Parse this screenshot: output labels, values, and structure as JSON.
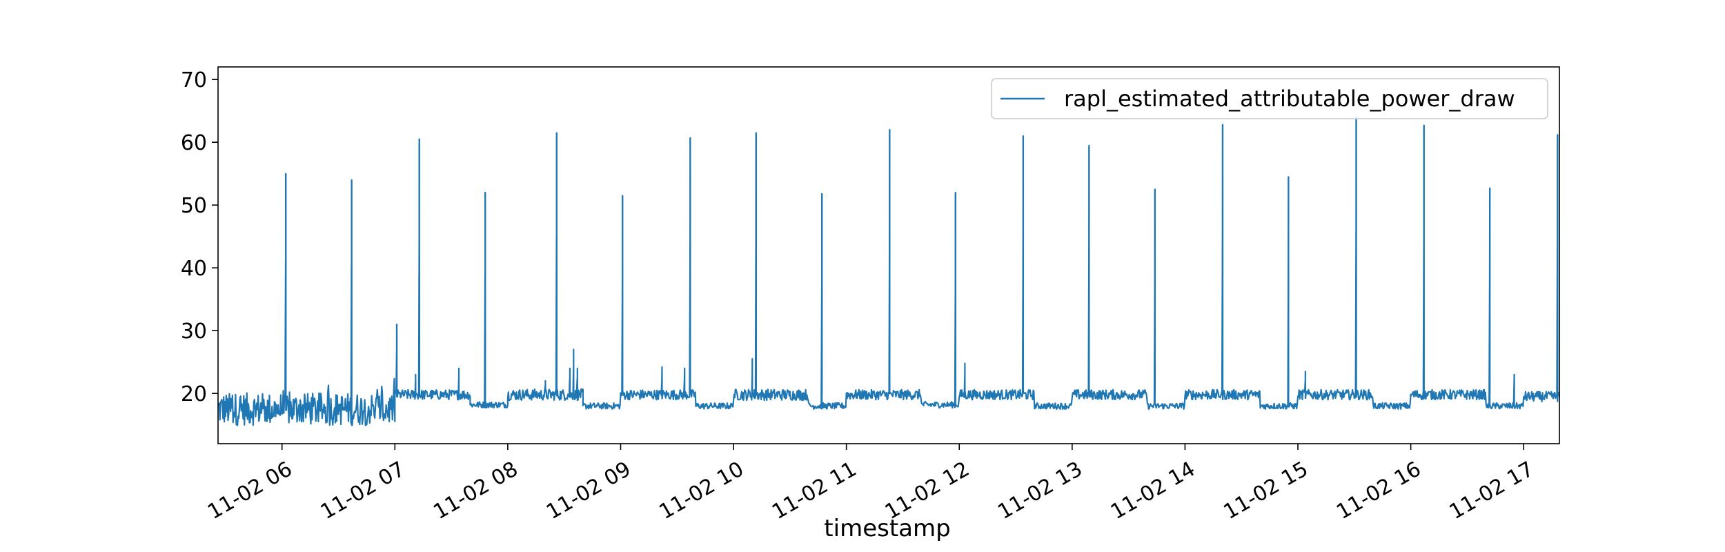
{
  "chart_data": {
    "type": "line",
    "title": "",
    "xlabel": "timestamp",
    "ylabel": "",
    "xlim": [
      "11-02 05:26",
      "11-02 17:19"
    ],
    "ylim": [
      12,
      72
    ],
    "y_ticks": [
      20,
      30,
      40,
      50,
      60,
      70
    ],
    "x_ticks": [
      "11-02 06",
      "11-02 07",
      "11-02 08",
      "11-02 09",
      "11-02 10",
      "11-02 11",
      "11-02 12",
      "11-02 13",
      "11-02 14",
      "11-02 15",
      "11-02 16",
      "11-02 17"
    ],
    "legend": {
      "position": "top-right",
      "entries": [
        "rapl_estimated_attributable_power_draw"
      ]
    },
    "grid": false,
    "color": "#1f77b4",
    "series": [
      {
        "name": "rapl_estimated_attributable_power_draw",
        "sample_interval_seconds": 20,
        "segments": [
          {
            "start": "11-02 05:26",
            "end": "11-02 07:00",
            "baseline": 17.5,
            "noise": 2.6
          },
          {
            "start": "11-02 07:00",
            "end": "11-02 07:40",
            "baseline": 19.8,
            "noise": 0.8
          },
          {
            "start": "11-02 07:40",
            "end": "11-02 08:00",
            "baseline": 18.2,
            "noise": 0.5
          },
          {
            "start": "11-02 08:00",
            "end": "11-02 08:40",
            "baseline": 19.8,
            "noise": 0.9
          },
          {
            "start": "11-02 08:40",
            "end": "11-02 09:00",
            "baseline": 18.0,
            "noise": 0.5
          },
          {
            "start": "11-02 09:00",
            "end": "11-02 09:40",
            "baseline": 19.8,
            "noise": 0.8
          },
          {
            "start": "11-02 09:40",
            "end": "11-02 10:00",
            "baseline": 18.0,
            "noise": 0.5
          },
          {
            "start": "11-02 10:00",
            "end": "11-02 10:40",
            "baseline": 19.8,
            "noise": 0.9
          },
          {
            "start": "11-02 10:40",
            "end": "11-02 11:00",
            "baseline": 18.0,
            "noise": 0.5
          },
          {
            "start": "11-02 11:00",
            "end": "11-02 11:40",
            "baseline": 19.8,
            "noise": 0.8
          },
          {
            "start": "11-02 11:40",
            "end": "11-02 12:00",
            "baseline": 18.2,
            "noise": 0.5
          },
          {
            "start": "11-02 12:00",
            "end": "11-02 12:40",
            "baseline": 19.8,
            "noise": 0.8
          },
          {
            "start": "11-02 12:40",
            "end": "11-02 13:00",
            "baseline": 18.0,
            "noise": 0.5
          },
          {
            "start": "11-02 13:00",
            "end": "11-02 13:40",
            "baseline": 19.8,
            "noise": 0.8
          },
          {
            "start": "11-02 13:40",
            "end": "11-02 14:00",
            "baseline": 18.0,
            "noise": 0.5
          },
          {
            "start": "11-02 14:00",
            "end": "11-02 14:40",
            "baseline": 19.8,
            "noise": 0.8
          },
          {
            "start": "11-02 14:40",
            "end": "11-02 15:00",
            "baseline": 18.0,
            "noise": 0.5
          },
          {
            "start": "11-02 15:00",
            "end": "11-02 15:40",
            "baseline": 19.8,
            "noise": 0.8
          },
          {
            "start": "11-02 15:40",
            "end": "11-02 16:00",
            "baseline": 18.0,
            "noise": 0.5
          },
          {
            "start": "11-02 16:00",
            "end": "11-02 16:40",
            "baseline": 19.8,
            "noise": 0.8
          },
          {
            "start": "11-02 16:40",
            "end": "11-02 17:00",
            "baseline": 18.0,
            "noise": 0.5
          },
          {
            "start": "11-02 17:00",
            "end": "11-02 17:19",
            "baseline": 19.5,
            "noise": 0.8
          }
        ],
        "peaks": [
          {
            "x": "11-02 06:02",
            "y": 55
          },
          {
            "x": "11-02 06:37",
            "y": 54
          },
          {
            "x": "11-02 07:01",
            "y": 31
          },
          {
            "x": "11-02 07:13",
            "y": 60.5
          },
          {
            "x": "11-02 07:48",
            "y": 52
          },
          {
            "x": "11-02 08:26",
            "y": 61.5
          },
          {
            "x": "11-02 09:01",
            "y": 51.5
          },
          {
            "x": "11-02 09:37",
            "y": 60.7
          },
          {
            "x": "11-02 10:12",
            "y": 61.5
          },
          {
            "x": "11-02 10:47",
            "y": 51.8
          },
          {
            "x": "11-02 11:23",
            "y": 62
          },
          {
            "x": "11-02 11:58",
            "y": 52
          },
          {
            "x": "11-02 12:34",
            "y": 61
          },
          {
            "x": "11-02 13:09",
            "y": 59.5
          },
          {
            "x": "11-02 13:44",
            "y": 52.5
          },
          {
            "x": "11-02 14:20",
            "y": 62.8
          },
          {
            "x": "11-02 14:55",
            "y": 54.5
          },
          {
            "x": "11-02 15:31",
            "y": 64
          },
          {
            "x": "11-02 16:07",
            "y": 62.7
          },
          {
            "x": "11-02 16:42",
            "y": 52.7
          },
          {
            "x": "11-02 17:18",
            "y": 61.2
          }
        ],
        "minor_spikes": [
          {
            "x": "11-02 07:11",
            "y": 23
          },
          {
            "x": "11-02 07:34",
            "y": 24
          },
          {
            "x": "11-02 08:20",
            "y": 22
          },
          {
            "x": "11-02 08:33",
            "y": 24
          },
          {
            "x": "11-02 08:35",
            "y": 27
          },
          {
            "x": "11-02 08:37",
            "y": 24
          },
          {
            "x": "11-02 09:22",
            "y": 24.2
          },
          {
            "x": "11-02 09:34",
            "y": 24
          },
          {
            "x": "11-02 10:10",
            "y": 25.5
          },
          {
            "x": "11-02 12:03",
            "y": 24.8
          },
          {
            "x": "11-02 15:04",
            "y": 23.5
          },
          {
            "x": "11-02 16:55",
            "y": 23
          }
        ]
      }
    ]
  }
}
